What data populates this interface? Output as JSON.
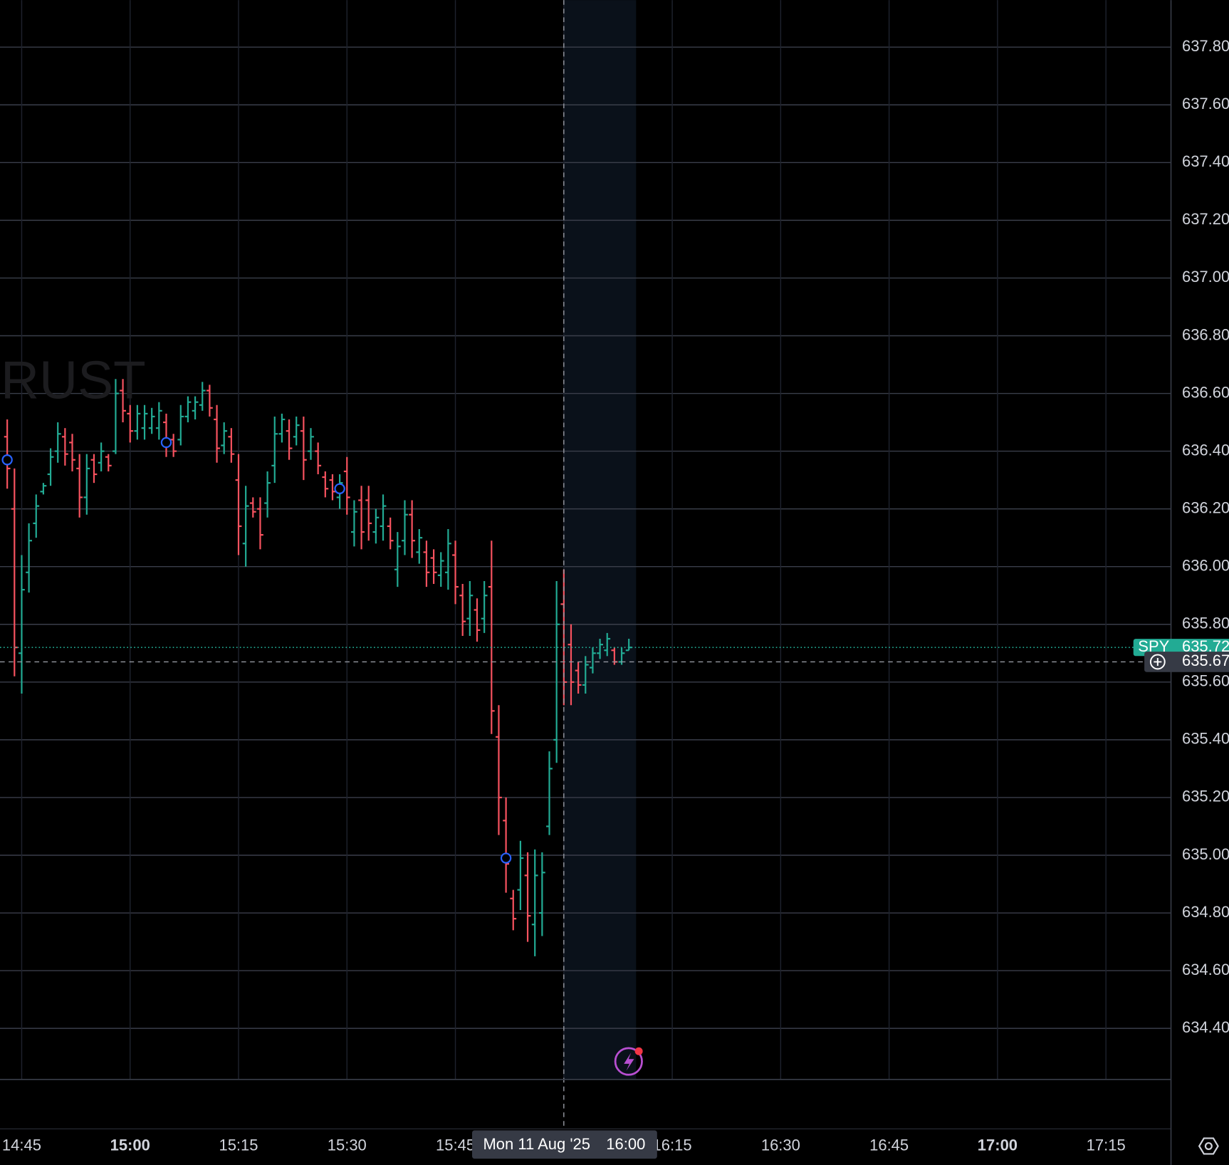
{
  "chart_data": {
    "type": "ohlc",
    "watermark": "TRUST",
    "x": [
      "14:43",
      "14:44",
      "14:45",
      "14:46",
      "14:47",
      "14:48",
      "14:49",
      "14:50",
      "14:51",
      "14:52",
      "14:53",
      "14:54",
      "14:55",
      "14:56",
      "14:57",
      "14:58",
      "14:59",
      "15:00",
      "15:01",
      "15:02",
      "15:03",
      "15:04",
      "15:05",
      "15:06",
      "15:07",
      "15:08",
      "15:09",
      "15:10",
      "15:11",
      "15:12",
      "15:13",
      "15:14",
      "15:15",
      "15:16",
      "15:17",
      "15:18",
      "15:19",
      "15:20",
      "15:21",
      "15:22",
      "15:23",
      "15:24",
      "15:25",
      "15:26",
      "15:27",
      "15:28",
      "15:29",
      "15:30",
      "15:31",
      "15:32",
      "15:33",
      "15:34",
      "15:35",
      "15:36",
      "15:37",
      "15:38",
      "15:39",
      "15:40",
      "15:41",
      "15:42",
      "15:43",
      "15:44",
      "15:45",
      "15:46",
      "15:47",
      "15:48",
      "15:49",
      "15:50",
      "15:51",
      "15:52",
      "15:53",
      "15:54",
      "15:55",
      "15:56",
      "15:57",
      "15:58",
      "15:59",
      "16:00",
      "16:01",
      "16:02",
      "16:03",
      "16:04",
      "16:05",
      "16:06",
      "16:07",
      "16:08",
      "16:09"
    ],
    "open": [
      636.45,
      636.2,
      635.7,
      635.98,
      636.15,
      636.26,
      636.32,
      636.4,
      636.45,
      636.43,
      636.34,
      636.24,
      636.37,
      636.36,
      636.38,
      636.4,
      636.61,
      636.53,
      636.47,
      636.48,
      636.48,
      636.48,
      636.5,
      636.44,
      636.44,
      636.52,
      636.54,
      636.56,
      636.61,
      636.51,
      636.42,
      636.45,
      636.3,
      636.08,
      636.22,
      636.2,
      636.22,
      636.35,
      636.46,
      636.47,
      636.45,
      636.47,
      636.4,
      636.4,
      636.31,
      636.3,
      636.24,
      636.33,
      636.12,
      636.23,
      636.23,
      636.12,
      636.14,
      636.14,
      635.99,
      636.09,
      636.18,
      636.05,
      636.05,
      636.03,
      635.97,
      635.98,
      636.04,
      635.9,
      635.82,
      635.85,
      635.82,
      635.93,
      635.41,
      635.12,
      634.85,
      634.88,
      634.93,
      634.76,
      634.8,
      635.1,
      635.4,
      635.87,
      635.73,
      635.64,
      635.59,
      635.65,
      635.7,
      635.71,
      635.71,
      635.67,
      635.71
    ],
    "high": [
      636.51,
      636.34,
      636.04,
      636.15,
      636.25,
      636.29,
      636.41,
      636.5,
      636.48,
      636.46,
      636.39,
      636.39,
      636.39,
      636.43,
      636.39,
      636.65,
      636.65,
      636.56,
      636.56,
      636.56,
      636.55,
      636.57,
      636.53,
      636.46,
      636.56,
      636.59,
      636.59,
      636.64,
      636.63,
      636.56,
      636.5,
      636.48,
      636.39,
      636.28,
      636.24,
      636.24,
      636.33,
      636.52,
      636.53,
      636.51,
      636.52,
      636.52,
      636.48,
      636.43,
      636.33,
      636.32,
      636.32,
      636.38,
      636.23,
      636.28,
      636.28,
      636.2,
      636.25,
      636.17,
      636.12,
      636.23,
      636.23,
      636.13,
      636.09,
      636.06,
      636.05,
      636.13,
      636.09,
      635.94,
      635.95,
      635.89,
      635.95,
      636.09,
      635.52,
      635.2,
      634.88,
      635.05,
      635.01,
      635.02,
      635.01,
      635.36,
      635.95,
      635.99,
      635.8,
      635.67,
      635.69,
      635.72,
      635.75,
      635.77,
      635.72,
      635.72,
      635.75
    ],
    "low": [
      636.27,
      635.62,
      635.56,
      635.91,
      636.1,
      636.25,
      636.28,
      636.36,
      636.35,
      636.33,
      636.17,
      636.18,
      636.29,
      636.33,
      636.33,
      636.39,
      636.5,
      636.43,
      636.44,
      636.44,
      636.46,
      636.44,
      636.38,
      636.38,
      636.42,
      636.5,
      636.51,
      636.54,
      636.52,
      636.36,
      636.39,
      636.36,
      636.04,
      636.0,
      636.17,
      636.06,
      636.17,
      636.29,
      636.43,
      636.37,
      636.42,
      636.3,
      636.37,
      636.32,
      636.24,
      636.23,
      636.2,
      636.18,
      636.07,
      636.06,
      636.09,
      636.08,
      636.09,
      636.06,
      635.93,
      636.04,
      636.03,
      636.01,
      635.93,
      635.94,
      635.93,
      635.92,
      635.87,
      635.76,
      635.76,
      635.74,
      635.77,
      635.42,
      635.07,
      634.87,
      634.74,
      634.81,
      634.7,
      634.65,
      634.72,
      635.07,
      635.32,
      635.52,
      635.52,
      635.56,
      635.56,
      635.63,
      635.68,
      635.69,
      635.66,
      635.66,
      635.71
    ],
    "close": [
      636.34,
      635.72,
      635.92,
      636.09,
      636.21,
      636.28,
      636.38,
      636.46,
      636.39,
      636.37,
      636.24,
      636.34,
      636.32,
      636.4,
      636.35,
      636.6,
      636.54,
      636.47,
      636.53,
      636.53,
      636.52,
      636.54,
      636.43,
      636.4,
      636.52,
      636.57,
      636.57,
      636.61,
      636.55,
      636.41,
      636.47,
      636.39,
      636.14,
      636.21,
      636.19,
      636.11,
      636.29,
      636.46,
      636.51,
      636.41,
      636.49,
      636.37,
      636.45,
      636.35,
      636.27,
      636.26,
      636.29,
      636.24,
      636.19,
      636.12,
      636.15,
      636.17,
      636.21,
      636.09,
      636.07,
      636.18,
      636.09,
      636.1,
      635.98,
      635.98,
      636.02,
      636.08,
      635.93,
      635.81,
      635.9,
      635.78,
      635.9,
      635.5,
      635.2,
      634.97,
      634.78,
      634.99,
      634.79,
      634.93,
      634.94,
      635.3,
      635.8,
      635.6,
      635.6,
      635.59,
      635.66,
      635.7,
      635.73,
      635.75,
      635.67,
      635.7,
      635.72
    ],
    "up_color": "#22ab94",
    "down_color": "#f7525f",
    "xlim": [
      "14:42",
      "17:24"
    ],
    "xticks": [
      "14:45",
      "15:00",
      "15:15",
      "15:30",
      "15:45",
      "16:00",
      "16:15",
      "16:30",
      "16:45",
      "17:00",
      "17:15"
    ],
    "ylim": [
      634.223,
      637.963
    ],
    "yticks": [
      {
        "value": 634.4,
        "label": "634.40"
      },
      {
        "value": 634.6,
        "label": "634.60"
      },
      {
        "value": 634.8,
        "label": "634.80"
      },
      {
        "value": 635,
        "label": "635.00"
      },
      {
        "value": 635.2,
        "label": "635.20"
      },
      {
        "value": 635.4,
        "label": "635.40"
      },
      {
        "value": 635.6,
        "label": "635.60"
      },
      {
        "value": 635.8,
        "label": "635.80"
      },
      {
        "value": 636,
        "label": "636.00"
      },
      {
        "value": 636.2,
        "label": "636.20"
      },
      {
        "value": 636.4,
        "label": "636.40"
      },
      {
        "value": 636.6,
        "label": "636.60"
      },
      {
        "value": 636.8,
        "label": "636.80"
      },
      {
        "value": 637,
        "label": "637.00"
      },
      {
        "value": 637.2,
        "label": "637.20"
      },
      {
        "value": 637.4,
        "label": "637.40"
      },
      {
        "value": 637.6,
        "label": "637.60"
      },
      {
        "value": 637.8,
        "label": "637.80"
      }
    ],
    "grid": true,
    "session_shade": [
      "16:00",
      "16:10"
    ],
    "markers": {
      "x": [
        "14:43",
        "15:05",
        "15:29",
        "15:52"
      ],
      "values": [
        636.37,
        636.43,
        636.27,
        634.99
      ],
      "color": "#2962ff"
    },
    "last_price": {
      "label": "SPY",
      "value": 635.72
    },
    "crosshair": {
      "date": "Mon 11 Aug '25",
      "time": "16:00",
      "price": 635.67
    }
  }
}
